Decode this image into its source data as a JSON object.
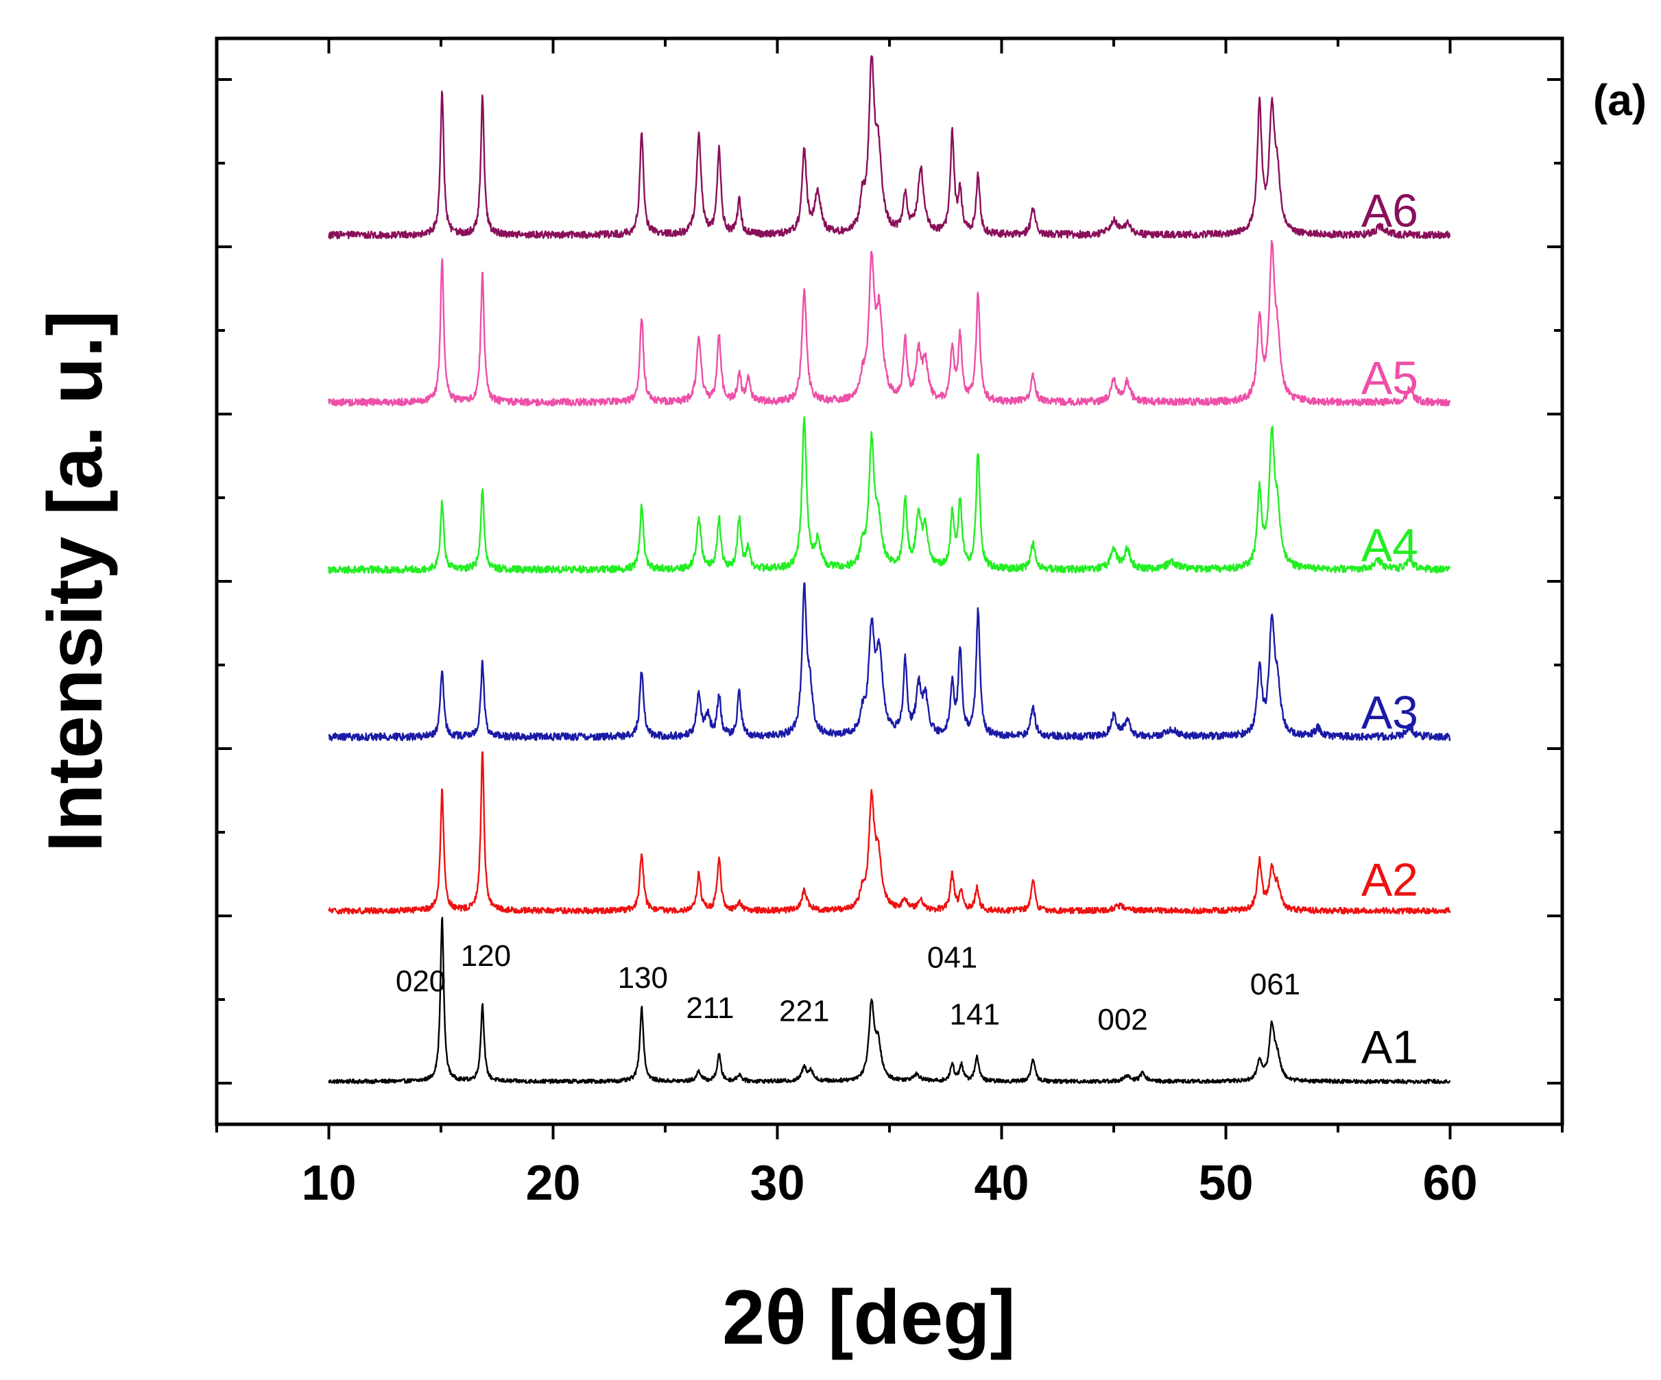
{
  "chart_data": {
    "type": "line",
    "title": "",
    "panel_label": "(a)",
    "xlabel": "2θ [deg]",
    "ylabel": "Intensity [a. u.]",
    "xlim": [
      5,
      65
    ],
    "x_range_data": [
      10,
      60
    ],
    "ylim": [
      0,
      6
    ],
    "grid": false,
    "y_tick_labels_shown": false,
    "x_ticks": [
      {
        "value": 10,
        "label": "10"
      },
      {
        "value": 20,
        "label": "20"
      },
      {
        "value": 30,
        "label": "30"
      },
      {
        "value": 40,
        "label": "40"
      },
      {
        "value": 50,
        "label": "50"
      },
      {
        "value": 60,
        "label": "60"
      }
    ],
    "x_minor_ticks": [
      15,
      25,
      35,
      45,
      55
    ],
    "series": [
      {
        "name": "A1",
        "color": "#000000",
        "offset": 0,
        "baseline": 0.01,
        "noise": 0.012,
        "peaks": [
          {
            "x": 15.05,
            "h": 0.98,
            "w": 0.09
          },
          {
            "x": 16.85,
            "h": 0.46,
            "w": 0.09
          },
          {
            "x": 23.95,
            "h": 0.44,
            "w": 0.1
          },
          {
            "x": 26.5,
            "h": 0.06,
            "w": 0.12
          },
          {
            "x": 27.4,
            "h": 0.16,
            "w": 0.1
          },
          {
            "x": 28.3,
            "h": 0.04,
            "w": 0.12
          },
          {
            "x": 31.2,
            "h": 0.08,
            "w": 0.14
          },
          {
            "x": 31.5,
            "h": 0.06,
            "w": 0.12
          },
          {
            "x": 34.2,
            "h": 0.45,
            "w": 0.14
          },
          {
            "x": 34.5,
            "h": 0.2,
            "w": 0.16
          },
          {
            "x": 36.2,
            "h": 0.04,
            "w": 0.2
          },
          {
            "x": 37.8,
            "h": 0.1,
            "w": 0.1
          },
          {
            "x": 38.2,
            "h": 0.1,
            "w": 0.1
          },
          {
            "x": 38.9,
            "h": 0.15,
            "w": 0.1
          },
          {
            "x": 41.4,
            "h": 0.14,
            "w": 0.1
          },
          {
            "x": 45.6,
            "h": 0.03,
            "w": 0.18
          },
          {
            "x": 46.3,
            "h": 0.05,
            "w": 0.14
          },
          {
            "x": 51.5,
            "h": 0.12,
            "w": 0.12
          },
          {
            "x": 52.05,
            "h": 0.32,
            "w": 0.14
          },
          {
            "x": 52.3,
            "h": 0.12,
            "w": 0.16
          }
        ]
      },
      {
        "name": "A2",
        "color": "#ee1111",
        "offset": 1,
        "baseline": 0.03,
        "noise": 0.018,
        "peaks": [
          {
            "x": 15.05,
            "h": 0.72,
            "w": 0.09
          },
          {
            "x": 16.85,
            "h": 0.95,
            "w": 0.09
          },
          {
            "x": 23.95,
            "h": 0.35,
            "w": 0.1
          },
          {
            "x": 26.5,
            "h": 0.22,
            "w": 0.1
          },
          {
            "x": 27.4,
            "h": 0.31,
            "w": 0.1
          },
          {
            "x": 28.3,
            "h": 0.05,
            "w": 0.12
          },
          {
            "x": 31.2,
            "h": 0.12,
            "w": 0.14
          },
          {
            "x": 33.8,
            "h": 0.1,
            "w": 0.12
          },
          {
            "x": 34.2,
            "h": 0.62,
            "w": 0.14
          },
          {
            "x": 34.5,
            "h": 0.3,
            "w": 0.18
          },
          {
            "x": 35.7,
            "h": 0.06,
            "w": 0.14
          },
          {
            "x": 36.4,
            "h": 0.06,
            "w": 0.16
          },
          {
            "x": 37.8,
            "h": 0.22,
            "w": 0.1
          },
          {
            "x": 38.2,
            "h": 0.12,
            "w": 0.1
          },
          {
            "x": 38.9,
            "h": 0.14,
            "w": 0.1
          },
          {
            "x": 41.4,
            "h": 0.19,
            "w": 0.1
          },
          {
            "x": 45.3,
            "h": 0.03,
            "w": 0.3
          },
          {
            "x": 51.5,
            "h": 0.29,
            "w": 0.12
          },
          {
            "x": 52.05,
            "h": 0.22,
            "w": 0.14
          },
          {
            "x": 52.3,
            "h": 0.12,
            "w": 0.16
          }
        ]
      },
      {
        "name": "A3",
        "color": "#1a1aa6",
        "offset": 2,
        "baseline": 0.07,
        "noise": 0.022,
        "peaks": [
          {
            "x": 15.05,
            "h": 0.4,
            "w": 0.09
          },
          {
            "x": 16.85,
            "h": 0.44,
            "w": 0.09
          },
          {
            "x": 23.95,
            "h": 0.4,
            "w": 0.1
          },
          {
            "x": 26.5,
            "h": 0.25,
            "w": 0.12
          },
          {
            "x": 26.9,
            "h": 0.12,
            "w": 0.12
          },
          {
            "x": 27.4,
            "h": 0.24,
            "w": 0.1
          },
          {
            "x": 28.3,
            "h": 0.26,
            "w": 0.1
          },
          {
            "x": 31.2,
            "h": 0.85,
            "w": 0.12
          },
          {
            "x": 31.45,
            "h": 0.25,
            "w": 0.14
          },
          {
            "x": 33.8,
            "h": 0.1,
            "w": 0.12
          },
          {
            "x": 34.2,
            "h": 0.6,
            "w": 0.16
          },
          {
            "x": 34.55,
            "h": 0.45,
            "w": 0.18
          },
          {
            "x": 35.7,
            "h": 0.44,
            "w": 0.1
          },
          {
            "x": 36.3,
            "h": 0.28,
            "w": 0.14
          },
          {
            "x": 36.6,
            "h": 0.22,
            "w": 0.14
          },
          {
            "x": 37.8,
            "h": 0.3,
            "w": 0.1
          },
          {
            "x": 38.15,
            "h": 0.5,
            "w": 0.1
          },
          {
            "x": 38.95,
            "h": 0.75,
            "w": 0.1
          },
          {
            "x": 41.4,
            "h": 0.18,
            "w": 0.12
          },
          {
            "x": 45.0,
            "h": 0.12,
            "w": 0.16
          },
          {
            "x": 45.6,
            "h": 0.09,
            "w": 0.16
          },
          {
            "x": 47.6,
            "h": 0.04,
            "w": 0.3
          },
          {
            "x": 51.5,
            "h": 0.4,
            "w": 0.12
          },
          {
            "x": 52.05,
            "h": 0.65,
            "w": 0.14
          },
          {
            "x": 52.3,
            "h": 0.25,
            "w": 0.16
          },
          {
            "x": 54.1,
            "h": 0.05,
            "w": 0.16
          },
          {
            "x": 58.2,
            "h": 0.06,
            "w": 0.18
          }
        ]
      },
      {
        "name": "A4",
        "color": "#22ee22",
        "offset": 3,
        "baseline": 0.07,
        "noise": 0.022,
        "peaks": [
          {
            "x": 15.05,
            "h": 0.4,
            "w": 0.09
          },
          {
            "x": 16.85,
            "h": 0.48,
            "w": 0.09
          },
          {
            "x": 23.95,
            "h": 0.38,
            "w": 0.1
          },
          {
            "x": 26.5,
            "h": 0.3,
            "w": 0.12
          },
          {
            "x": 27.4,
            "h": 0.3,
            "w": 0.1
          },
          {
            "x": 28.3,
            "h": 0.3,
            "w": 0.1
          },
          {
            "x": 28.7,
            "h": 0.12,
            "w": 0.1
          },
          {
            "x": 31.2,
            "h": 0.9,
            "w": 0.12
          },
          {
            "x": 31.8,
            "h": 0.16,
            "w": 0.14
          },
          {
            "x": 33.8,
            "h": 0.12,
            "w": 0.12
          },
          {
            "x": 34.2,
            "h": 0.72,
            "w": 0.14
          },
          {
            "x": 34.5,
            "h": 0.25,
            "w": 0.18
          },
          {
            "x": 35.7,
            "h": 0.4,
            "w": 0.1
          },
          {
            "x": 36.3,
            "h": 0.3,
            "w": 0.14
          },
          {
            "x": 36.6,
            "h": 0.22,
            "w": 0.14
          },
          {
            "x": 37.8,
            "h": 0.32,
            "w": 0.1
          },
          {
            "x": 38.15,
            "h": 0.4,
            "w": 0.1
          },
          {
            "x": 38.95,
            "h": 0.7,
            "w": 0.1
          },
          {
            "x": 41.4,
            "h": 0.15,
            "w": 0.12
          },
          {
            "x": 45.0,
            "h": 0.12,
            "w": 0.16
          },
          {
            "x": 45.6,
            "h": 0.12,
            "w": 0.16
          },
          {
            "x": 47.6,
            "h": 0.04,
            "w": 0.3
          },
          {
            "x": 51.5,
            "h": 0.45,
            "w": 0.12
          },
          {
            "x": 52.05,
            "h": 0.75,
            "w": 0.14
          },
          {
            "x": 52.3,
            "h": 0.28,
            "w": 0.16
          },
          {
            "x": 56.8,
            "h": 0.05,
            "w": 0.24
          },
          {
            "x": 58.2,
            "h": 0.06,
            "w": 0.18
          }
        ]
      },
      {
        "name": "A5",
        "color": "#ee4fa8",
        "offset": 4,
        "baseline": 0.07,
        "noise": 0.022,
        "peaks": [
          {
            "x": 15.05,
            "h": 0.85,
            "w": 0.09
          },
          {
            "x": 16.85,
            "h": 0.78,
            "w": 0.09
          },
          {
            "x": 23.95,
            "h": 0.5,
            "w": 0.1
          },
          {
            "x": 26.5,
            "h": 0.38,
            "w": 0.12
          },
          {
            "x": 27.4,
            "h": 0.4,
            "w": 0.1
          },
          {
            "x": 28.3,
            "h": 0.16,
            "w": 0.1
          },
          {
            "x": 28.7,
            "h": 0.14,
            "w": 0.1
          },
          {
            "x": 31.2,
            "h": 0.68,
            "w": 0.12
          },
          {
            "x": 33.8,
            "h": 0.12,
            "w": 0.12
          },
          {
            "x": 34.2,
            "h": 0.78,
            "w": 0.14
          },
          {
            "x": 34.55,
            "h": 0.5,
            "w": 0.18
          },
          {
            "x": 35.7,
            "h": 0.35,
            "w": 0.1
          },
          {
            "x": 36.3,
            "h": 0.28,
            "w": 0.14
          },
          {
            "x": 36.6,
            "h": 0.22,
            "w": 0.14
          },
          {
            "x": 37.8,
            "h": 0.3,
            "w": 0.1
          },
          {
            "x": 38.15,
            "h": 0.38,
            "w": 0.1
          },
          {
            "x": 38.95,
            "h": 0.65,
            "w": 0.1
          },
          {
            "x": 41.4,
            "h": 0.15,
            "w": 0.12
          },
          {
            "x": 45.0,
            "h": 0.12,
            "w": 0.16
          },
          {
            "x": 45.6,
            "h": 0.12,
            "w": 0.16
          },
          {
            "x": 51.5,
            "h": 0.48,
            "w": 0.12
          },
          {
            "x": 52.05,
            "h": 0.85,
            "w": 0.14
          },
          {
            "x": 52.3,
            "h": 0.3,
            "w": 0.16
          },
          {
            "x": 58.2,
            "h": 0.08,
            "w": 0.18
          }
        ]
      },
      {
        "name": "A6",
        "color": "#8a0f5a",
        "offset": 5,
        "baseline": 0.07,
        "noise": 0.022,
        "peaks": [
          {
            "x": 15.05,
            "h": 0.85,
            "w": 0.09
          },
          {
            "x": 16.85,
            "h": 0.83,
            "w": 0.09
          },
          {
            "x": 23.95,
            "h": 0.62,
            "w": 0.1
          },
          {
            "x": 26.5,
            "h": 0.6,
            "w": 0.12
          },
          {
            "x": 27.4,
            "h": 0.52,
            "w": 0.1
          },
          {
            "x": 28.3,
            "h": 0.2,
            "w": 0.1
          },
          {
            "x": 31.2,
            "h": 0.5,
            "w": 0.12
          },
          {
            "x": 31.8,
            "h": 0.25,
            "w": 0.16
          },
          {
            "x": 33.8,
            "h": 0.18,
            "w": 0.12
          },
          {
            "x": 34.2,
            "h": 0.95,
            "w": 0.14
          },
          {
            "x": 34.5,
            "h": 0.45,
            "w": 0.18
          },
          {
            "x": 35.7,
            "h": 0.22,
            "w": 0.12
          },
          {
            "x": 36.4,
            "h": 0.38,
            "w": 0.16
          },
          {
            "x": 37.8,
            "h": 0.6,
            "w": 0.1
          },
          {
            "x": 38.15,
            "h": 0.25,
            "w": 0.1
          },
          {
            "x": 38.95,
            "h": 0.35,
            "w": 0.1
          },
          {
            "x": 41.4,
            "h": 0.15,
            "w": 0.12
          },
          {
            "x": 45.0,
            "h": 0.08,
            "w": 0.2
          },
          {
            "x": 45.6,
            "h": 0.06,
            "w": 0.2
          },
          {
            "x": 51.5,
            "h": 0.75,
            "w": 0.12
          },
          {
            "x": 52.05,
            "h": 0.7,
            "w": 0.14
          },
          {
            "x": 52.3,
            "h": 0.3,
            "w": 0.16
          },
          {
            "x": 56.9,
            "h": 0.05,
            "w": 0.24
          }
        ]
      }
    ],
    "annotations": [
      {
        "text": "020",
        "x": 14.1,
        "y": 0.55
      },
      {
        "text": "120",
        "x": 17.0,
        "y": 0.7
      },
      {
        "text": "130",
        "x": 24.0,
        "y": 0.57
      },
      {
        "text": "211",
        "x": 27.0,
        "y": 0.39
      },
      {
        "text": "221",
        "x": 31.2,
        "y": 0.37
      },
      {
        "text": "041",
        "x": 37.8,
        "y": 0.69
      },
      {
        "text": "141",
        "x": 38.8,
        "y": 0.35
      },
      {
        "text": "002",
        "x": 45.4,
        "y": 0.32
      },
      {
        "text": "061",
        "x": 52.2,
        "y": 0.53
      }
    ]
  }
}
